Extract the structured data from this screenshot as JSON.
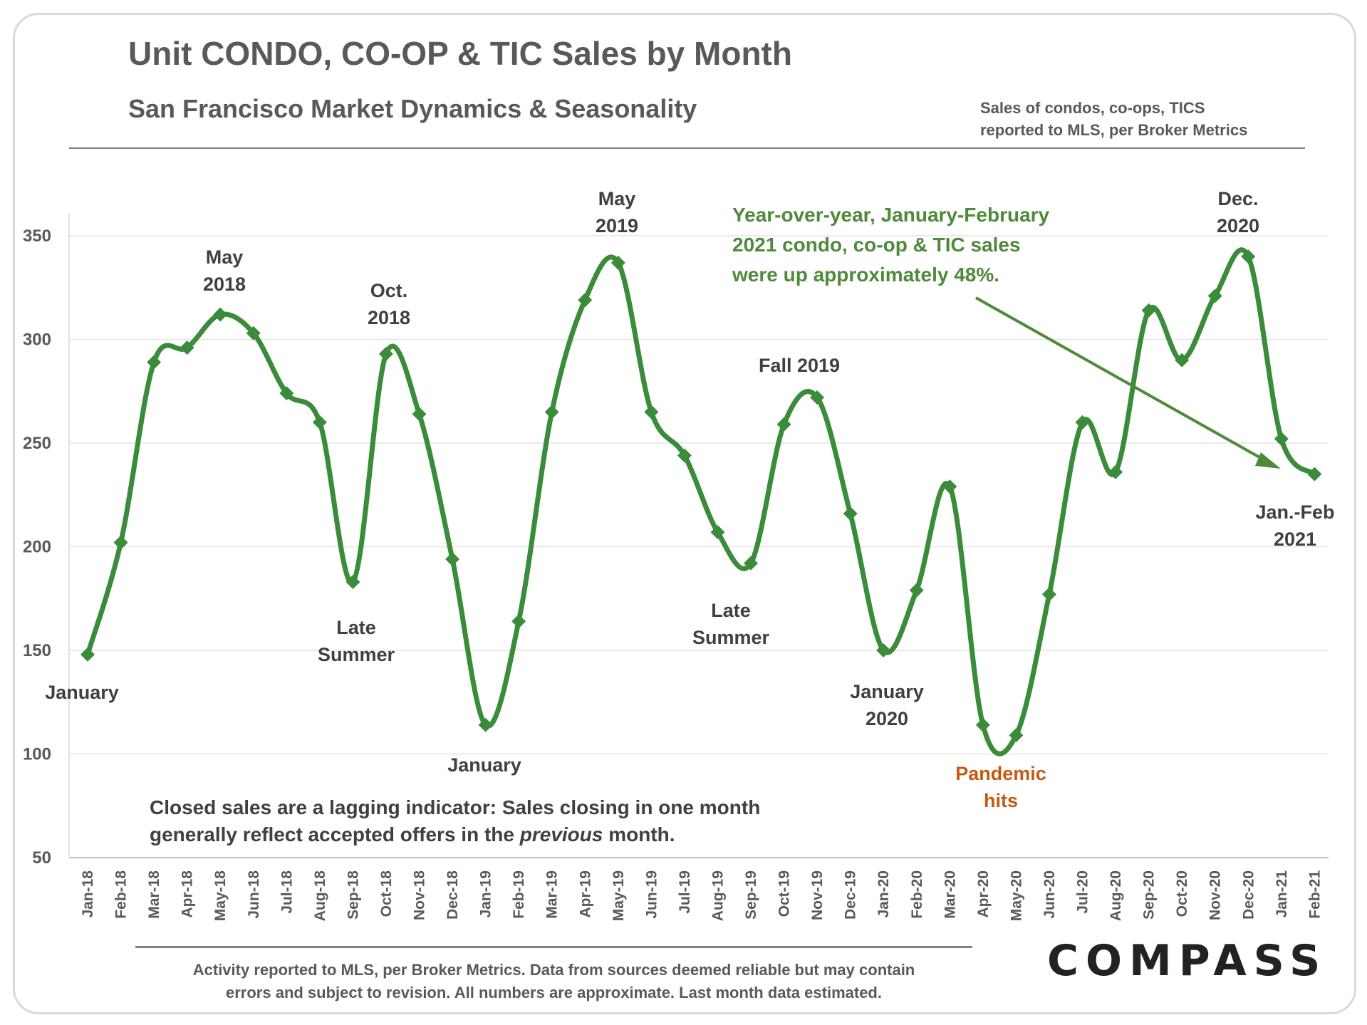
{
  "header": {
    "title": "Unit CONDO, CO-OP & TIC Sales by Month",
    "subtitle": "San Francisco Market Dynamics & Seasonality",
    "source_note_line1": "Sales of condos, co-ops, TICS",
    "source_note_line2": "reported to MLS, per Broker Metrics"
  },
  "footer": {
    "disclaimer_line1": "Activity reported to MLS, per Broker Metrics. Data from sources deemed reliable but may contain",
    "disclaimer_line2": "errors and subject to revision. All numbers are approximate. Last month data estimated.",
    "logo": "COMPASS"
  },
  "colors": {
    "series": "#3a8c3a",
    "annotation_text": "#404040",
    "highlight_orange": "#c55a11",
    "callout_green": "#4e8a3a",
    "gridline": "#e6e6e6"
  },
  "chart_data": {
    "type": "line",
    "title": "Unit CONDO, CO-OP & TIC Sales by Month",
    "subtitle": "San Francisco Market Dynamics & Seasonality",
    "xlabel": "",
    "ylabel": "",
    "ylim": [
      50,
      350
    ],
    "yticks": [
      50,
      100,
      150,
      200,
      250,
      300,
      350
    ],
    "grid": true,
    "marker": "diamond",
    "smooth": true,
    "categories": [
      "Jan-18",
      "Feb-18",
      "Mar-18",
      "Apr-18",
      "May-18",
      "Jun-18",
      "Jul-18",
      "Aug-18",
      "Sep-18",
      "Oct-18",
      "Nov-18",
      "Dec-18",
      "Jan-19",
      "Feb-19",
      "Mar-19",
      "Apr-19",
      "May-19",
      "Jun-19",
      "Jul-19",
      "Aug-19",
      "Sep-19",
      "Oct-19",
      "Nov-19",
      "Dec-19",
      "Jan-20",
      "Feb-20",
      "Mar-20",
      "Apr-20",
      "May-20",
      "Jun-20",
      "Jul-20",
      "Aug-20",
      "Sep-20",
      "Oct-20",
      "Nov-20",
      "Dec-20",
      "Jan-21",
      "Feb-21"
    ],
    "series": [
      {
        "values": [
          148,
          202,
          289,
          296,
          312,
          303,
          274,
          260,
          183,
          293,
          264,
          194,
          114,
          164,
          265,
          319,
          337,
          265,
          244,
          207,
          192,
          259,
          272,
          216,
          150,
          179,
          229,
          114,
          109,
          177,
          260,
          236,
          314,
          290,
          321,
          340,
          252,
          235
        ]
      }
    ],
    "annotations": [
      {
        "lines": [
          "January"
        ],
        "category": "Jan-18"
      },
      {
        "lines": [
          "May",
          "2018"
        ],
        "category": "May-18"
      },
      {
        "lines": [
          "Oct.",
          "2018"
        ],
        "category": "Oct-18"
      },
      {
        "lines": [
          "Late",
          "Summer"
        ],
        "category": "Sep-18"
      },
      {
        "lines": [
          "January"
        ],
        "category": "Jan-19"
      },
      {
        "lines": [
          "May",
          "2019"
        ],
        "category": "May-19"
      },
      {
        "lines": [
          "Late",
          "Summer"
        ],
        "category": "Sep-19"
      },
      {
        "lines": [
          "Fall 2019"
        ],
        "category": "Nov-19"
      },
      {
        "lines": [
          "January",
          "2020"
        ],
        "category": "Jan-20"
      },
      {
        "lines": [
          "Pandemic",
          "hits"
        ],
        "category": "May-20"
      },
      {
        "lines": [
          "Dec.",
          "2020"
        ],
        "category": "Dec-20"
      },
      {
        "lines": [
          "Jan.-Feb",
          "2021"
        ],
        "category": "Feb-21"
      }
    ],
    "callout": {
      "lines": [
        "Year-over-year,  January-February",
        "2021  condo,  co-op  &  TIC  sales",
        "were up approximately 48%."
      ],
      "points_to": "Feb-21"
    },
    "note": {
      "line1": "Closed sales are a lagging indicator: Sales closing in one month",
      "line2_before": "generally reflect accepted offers in the ",
      "line2_italic": "previous",
      "line2_after": " month."
    }
  }
}
